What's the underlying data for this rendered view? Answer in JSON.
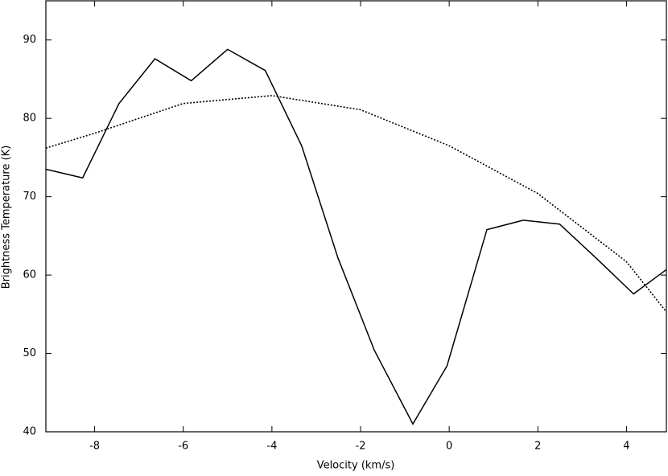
{
  "chart_data": {
    "type": "line",
    "x_label": "Velocity (km/s)",
    "y_label": "Brightness Temperature (K)",
    "xlim": [
      -9.1,
      4.9
    ],
    "ylim": [
      40,
      95
    ],
    "xticks": [
      -8,
      -6,
      -4,
      -2,
      0,
      2,
      4
    ],
    "yticks": [
      40,
      50,
      60,
      70,
      80,
      90
    ],
    "series": [
      {
        "color": "#000000",
        "style": "solid",
        "x": [
          -9.1,
          -8.27,
          -7.45,
          -6.64,
          -5.82,
          -5.0,
          -4.15,
          -3.33,
          -2.51,
          -1.69,
          -0.82,
          -0.05,
          0.85,
          1.67,
          2.49,
          3.31,
          4.16,
          4.9
        ],
        "values": [
          73.5,
          72.4,
          81.9,
          87.6,
          84.8,
          88.8,
          86.1,
          76.5,
          62.2,
          50.4,
          41.0,
          48.4,
          65.8,
          67.0,
          66.5,
          62.2,
          57.6,
          60.7
        ]
      },
      {
        "color": "#000000",
        "style": "dotted",
        "x": [
          -9.1,
          -8,
          -6,
          -4,
          -2,
          0,
          2,
          4,
          4.9
        ],
        "values": [
          76.2,
          78.1,
          81.9,
          82.9,
          81.1,
          76.5,
          70.4,
          61.7,
          55.3
        ]
      }
    ]
  }
}
